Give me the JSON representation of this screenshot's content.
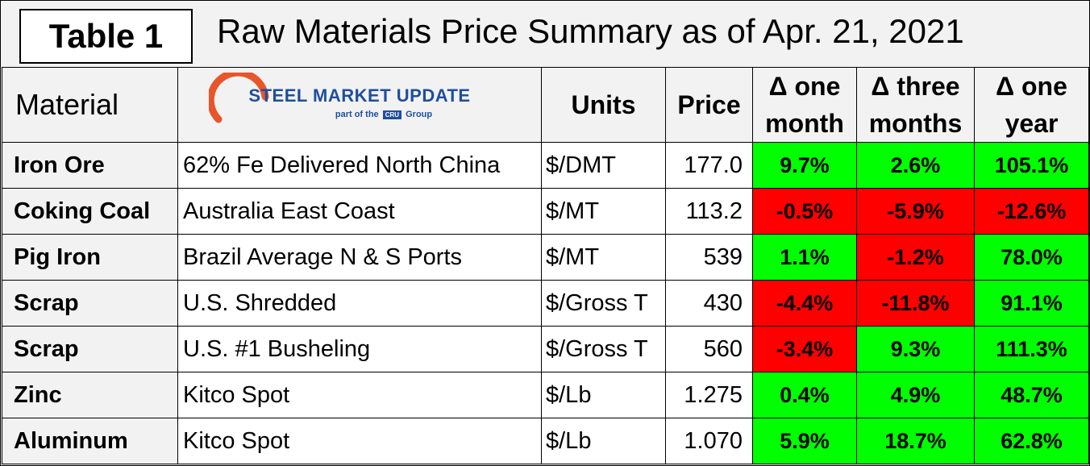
{
  "title_box": "Table 1",
  "title": "Raw Materials Price Summary as of Apr. 21, 2021",
  "logo": {
    "bold": "STEEL",
    "rest": "MARKET UPDATE",
    "sub_prefix": "part of the",
    "sub_badge": "CRU",
    "sub_suffix": "Group"
  },
  "headers": {
    "material": "Material",
    "units": "Units",
    "price": "Price",
    "one_month": "Δ one month",
    "three_months": "Δ three months",
    "one_year": "Δ one year"
  },
  "rows": [
    {
      "material": "Iron Ore",
      "desc": "62% Fe Delivered North China",
      "units": "$/DMT",
      "price": "177.0",
      "m1": "9.7%",
      "m3": "2.6%",
      "y1": "105.1%"
    },
    {
      "material": "Coking Coal",
      "desc": "Australia East Coast",
      "units": "$/MT",
      "price": "113.2",
      "m1": "-0.5%",
      "m3": "-5.9%",
      "y1": "-12.6%"
    },
    {
      "material": "Pig Iron",
      "desc": "Brazil Average N & S Ports",
      "units": "$/MT",
      "price": "539",
      "m1": "1.1%",
      "m3": "-1.2%",
      "y1": "78.0%"
    },
    {
      "material": "Scrap",
      "desc": "U.S. Shredded",
      "units": "$/Gross T",
      "price": "430",
      "m1": "-4.4%",
      "m3": "-11.8%",
      "y1": "91.1%"
    },
    {
      "material": "Scrap",
      "desc": "U.S. #1 Busheling",
      "units": "$/Gross T",
      "price": "560",
      "m1": "-3.4%",
      "m3": "9.3%",
      "y1": "111.3%"
    },
    {
      "material": "Zinc",
      "desc": "Kitco Spot",
      "units": "$/Lb",
      "price": "1.275",
      "m1": "0.4%",
      "m3": "4.9%",
      "y1": "48.7%"
    },
    {
      "material": "Aluminum",
      "desc": "Kitco Spot",
      "units": "$/Lb",
      "price": "1.070",
      "m1": "5.9%",
      "m3": "18.7%",
      "y1": "62.8%"
    }
  ],
  "colors": {
    "positive": "#00ff00",
    "negative": "#ff0000",
    "brand_blue": "#1f4e9e",
    "brand_orange": "#e8552a"
  }
}
